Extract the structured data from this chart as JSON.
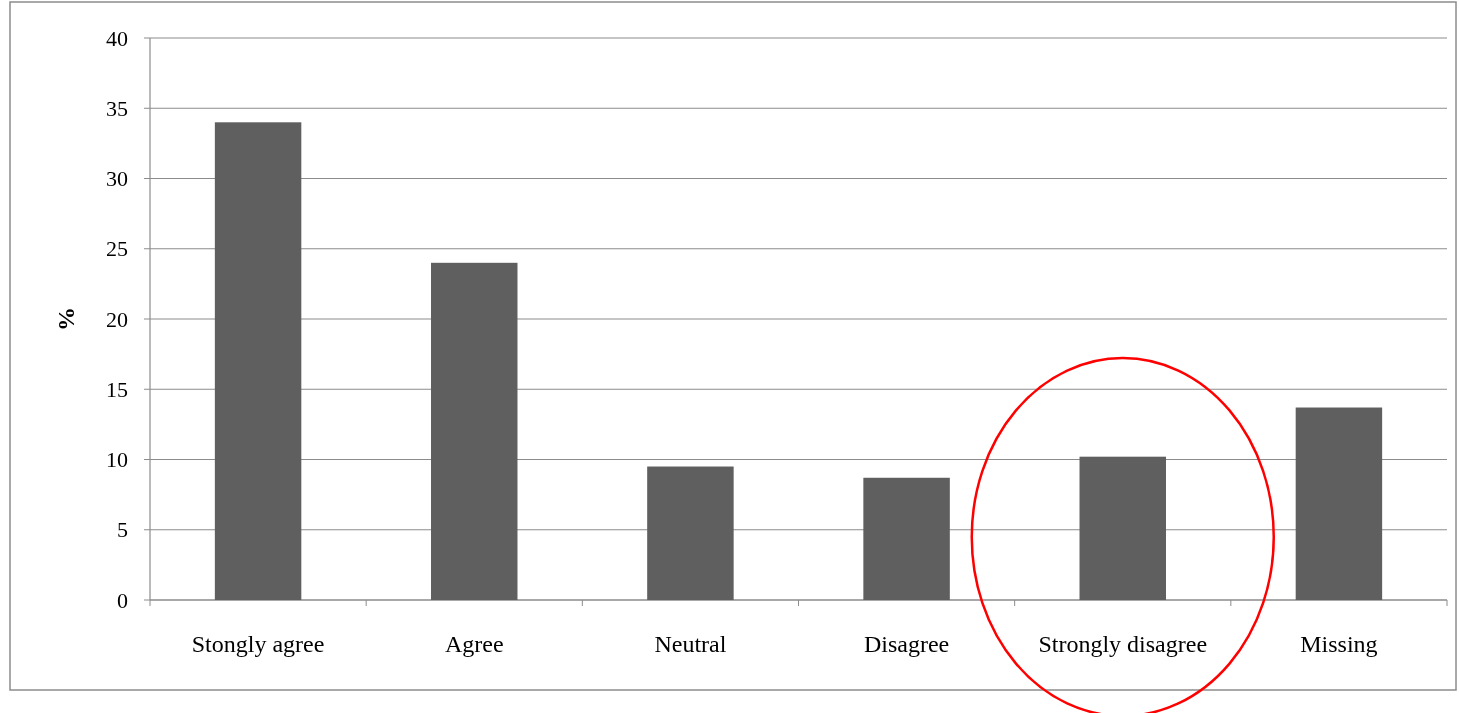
{
  "chart_data": {
    "type": "bar",
    "ylabel": "%",
    "categories": [
      "Stongly agree",
      "Agree",
      "Neutral",
      "Disagree",
      "Strongly disagree",
      "Missing"
    ],
    "values": [
      34,
      24,
      9.5,
      8.7,
      10.2,
      13.7
    ],
    "color": "#5f5f5f",
    "ylim": [
      0,
      40
    ],
    "yticks": [
      0,
      5,
      10,
      15,
      20,
      25,
      30,
      35,
      40
    ],
    "grid": "y"
  }
}
